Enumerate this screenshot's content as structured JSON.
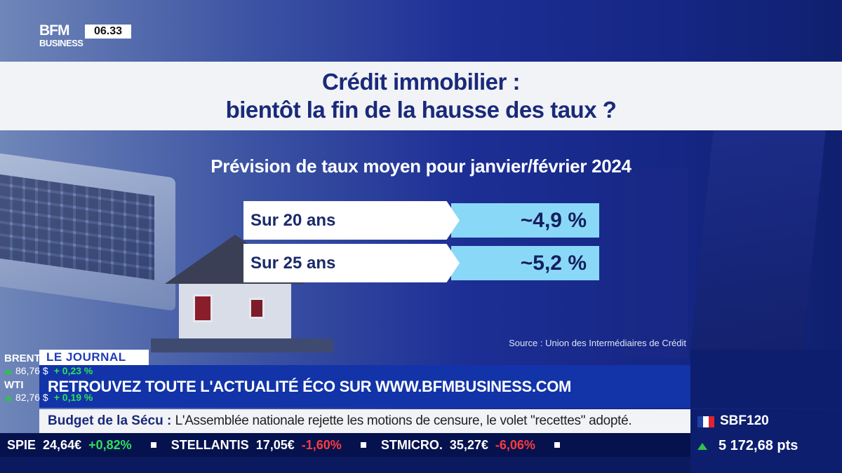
{
  "channel": {
    "logo_line1": "BFM",
    "logo_line2": "BUSINESS",
    "time": "06.33"
  },
  "title": {
    "line1": "Crédit immobilier :",
    "line2": "bientôt la fin de la hausse des taux ?"
  },
  "subtitle": "Prévision de taux moyen pour janvier/février 2024",
  "rates": [
    {
      "label": "Sur 20 ans",
      "value": "~4,9 %"
    },
    {
      "label": "Sur 25 ans",
      "value": "~5,2 %"
    }
  ],
  "source": "Source : Union des Intermédiaires de Crédit",
  "lower_third": {
    "tag": "LE JOURNAL",
    "headline": "RETROUVEZ TOUTE L'ACTUALITÉ ÉCO SUR WWW.BFMBUSINESS.COM"
  },
  "markets": [
    {
      "name": "BRENT",
      "price": "86,76 $",
      "change": "+ 0,23 %"
    },
    {
      "name": "WTI",
      "price": "82,76 $",
      "change": "+ 0,19 %"
    }
  ],
  "news": {
    "topic": "Budget de la Sécu :",
    "text": "L'Assemblée nationale rejette les motions de censure, le volet \"recettes\" adopté."
  },
  "index": {
    "name": "SBF120",
    "value": "5 172,68 pts",
    "flag_colors": [
      "#1f3ea8",
      "#ffffff",
      "#e0242f"
    ]
  },
  "ticker": [
    {
      "symbol": "SPIE",
      "price": "24,64€",
      "change": "+0,82%",
      "direction": "up"
    },
    {
      "symbol": "STELLANTIS",
      "price": "17,05€",
      "change": "-1,60%",
      "direction": "down"
    },
    {
      "symbol": "STMICRO.",
      "price": "35,27€",
      "change": "-6,06%",
      "direction": "down"
    }
  ]
}
